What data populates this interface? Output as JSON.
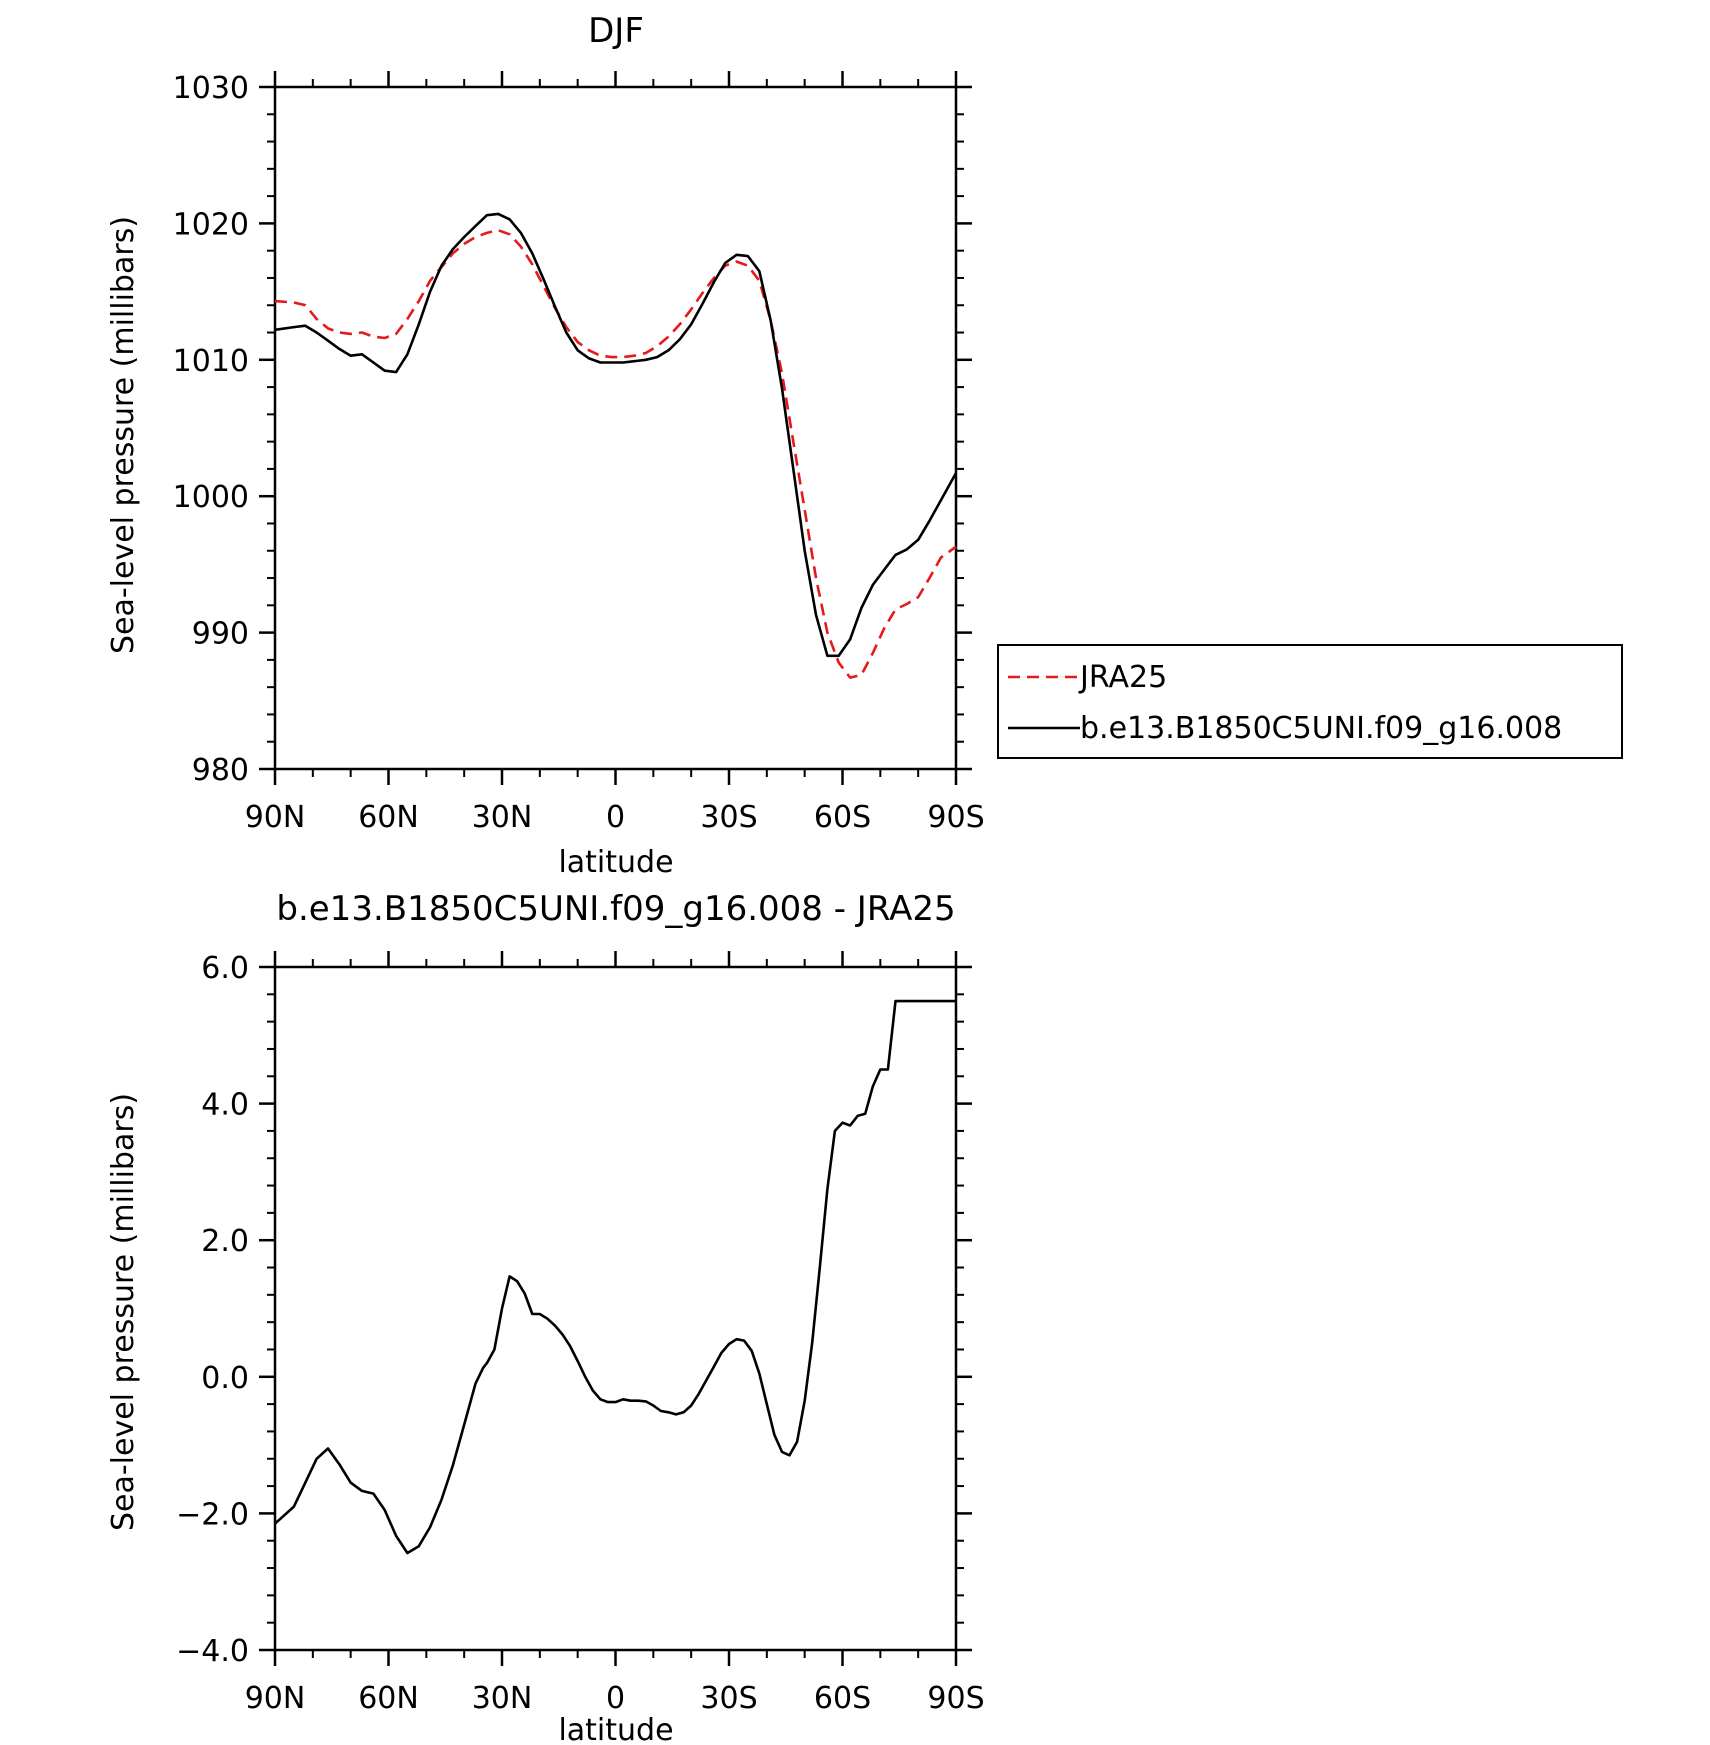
{
  "chart_data": [
    {
      "type": "line",
      "title": "DJF",
      "xlabel": "latitude",
      "ylabel": "Sea-level pressure (millibars)",
      "xlim": [
        90,
        -90
      ],
      "ylim": [
        980,
        1030
      ],
      "x_ticks": [
        {
          "value": 90,
          "label": "90N"
        },
        {
          "value": 60,
          "label": "60N"
        },
        {
          "value": 30,
          "label": "30N"
        },
        {
          "value": 0,
          "label": "0"
        },
        {
          "value": -30,
          "label": "30S"
        },
        {
          "value": -60,
          "label": "60S"
        },
        {
          "value": -90,
          "label": "90S"
        }
      ],
      "y_ticks": [
        {
          "value": 980,
          "label": "980"
        },
        {
          "value": 990,
          "label": "990"
        },
        {
          "value": 1000,
          "label": "1000"
        },
        {
          "value": 1010,
          "label": "1010"
        },
        {
          "value": 1020,
          "label": "1020"
        },
        {
          "value": 1030,
          "label": "1030"
        }
      ],
      "legend": "right",
      "series": [
        {
          "name": "JRA25",
          "color": "#e41a1c",
          "dash": "dashed",
          "x": [
            90,
            85,
            82,
            79,
            76,
            73,
            70,
            67,
            64,
            61,
            58,
            55,
            52,
            49,
            46,
            43,
            40,
            37,
            34,
            31,
            28,
            25,
            22,
            19,
            16,
            13,
            10,
            7,
            4,
            1,
            -2,
            -5,
            -8,
            -11,
            -14,
            -17,
            -20,
            -23,
            -26,
            -29,
            -32,
            -35,
            -38,
            -41,
            -44,
            -47,
            -50,
            -53,
            -56,
            -59,
            -62,
            -65,
            -68,
            -71,
            -74,
            -77,
            -80,
            -83,
            -86,
            -90
          ],
          "values": [
            1014.3,
            1014.2,
            1014.0,
            1013.0,
            1012.3,
            1012.0,
            1011.9,
            1012.0,
            1011.7,
            1011.6,
            1011.9,
            1013.0,
            1014.3,
            1015.8,
            1016.8,
            1017.8,
            1018.5,
            1019.0,
            1019.3,
            1019.5,
            1019.2,
            1018.3,
            1017.0,
            1015.4,
            1013.8,
            1012.4,
            1011.3,
            1010.7,
            1010.3,
            1010.2,
            1010.2,
            1010.3,
            1010.5,
            1011.0,
            1011.7,
            1012.6,
            1013.7,
            1014.9,
            1016.0,
            1016.9,
            1017.2,
            1016.9,
            1015.8,
            1012.9,
            1009.0,
            1004.0,
            999.0,
            994.0,
            990.0,
            987.8,
            986.7,
            986.9,
            988.5,
            990.3,
            991.7,
            992.1,
            992.6,
            994.0,
            995.5,
            996.3
          ]
        },
        {
          "name": "b.e13.B1850C5UNI.f09_g16.008",
          "color": "#000000",
          "dash": "solid",
          "x": [
            90,
            85,
            82,
            79,
            76,
            73,
            70,
            67,
            64,
            61,
            58,
            55,
            52,
            49,
            46,
            43,
            40,
            37,
            34,
            31,
            28,
            25,
            22,
            19,
            16,
            13,
            10,
            7,
            4,
            1,
            -2,
            -5,
            -8,
            -11,
            -14,
            -17,
            -20,
            -23,
            -26,
            -29,
            -32,
            -35,
            -38,
            -41,
            -44,
            -47,
            -50,
            -53,
            -56,
            -59,
            -62,
            -65,
            -68,
            -71,
            -74,
            -77,
            -80,
            -83,
            -86,
            -90
          ],
          "values": [
            1012.2,
            1012.4,
            1012.5,
            1012.0,
            1011.4,
            1010.8,
            1010.3,
            1010.4,
            1009.8,
            1009.2,
            1009.1,
            1010.4,
            1012.6,
            1015.0,
            1016.9,
            1018.1,
            1019.0,
            1019.8,
            1020.6,
            1020.7,
            1020.3,
            1019.3,
            1017.8,
            1015.9,
            1013.9,
            1012.0,
            1010.7,
            1010.1,
            1009.8,
            1009.8,
            1009.8,
            1009.9,
            1010.0,
            1010.2,
            1010.7,
            1011.5,
            1012.6,
            1014.1,
            1015.7,
            1017.1,
            1017.7,
            1017.6,
            1016.5,
            1012.9,
            1007.9,
            1002.0,
            996.0,
            991.3,
            988.3,
            988.3,
            989.5,
            991.8,
            993.5,
            994.6,
            995.7,
            996.1,
            996.8,
            998.2,
            999.7,
            1001.7
          ]
        }
      ]
    },
    {
      "type": "line",
      "title": "b.e13.B1850C5UNI.f09_g16.008 - JRA25",
      "xlabel": "latitude",
      "ylabel": "Sea-level pressure (millibars)",
      "xlim": [
        90,
        -90
      ],
      "ylim": [
        -4.0,
        6.0
      ],
      "x_ticks": [
        {
          "value": 90,
          "label": "90N"
        },
        {
          "value": 60,
          "label": "60N"
        },
        {
          "value": 30,
          "label": "30N"
        },
        {
          "value": 0,
          "label": "0"
        },
        {
          "value": -30,
          "label": "30S"
        },
        {
          "value": -60,
          "label": "60S"
        },
        {
          "value": -90,
          "label": "90S"
        }
      ],
      "y_ticks": [
        {
          "value": -4.0,
          "label": "−4.0"
        },
        {
          "value": -2.0,
          "label": "−2.0"
        },
        {
          "value": 0.0,
          "label": "0.0"
        },
        {
          "value": 2.0,
          "label": "2.0"
        },
        {
          "value": 4.0,
          "label": "4.0"
        },
        {
          "value": 6.0,
          "label": "6.0"
        }
      ],
      "series": [
        {
          "color": "#000000",
          "dash": "solid",
          "x": [
            90,
            88,
            85,
            82,
            79,
            76,
            73,
            70,
            67,
            64,
            61,
            58,
            55,
            52,
            49,
            46,
            43,
            40,
            37,
            35,
            34,
            32,
            30,
            28,
            26,
            24,
            22,
            20,
            18,
            16,
            14,
            12,
            10,
            8,
            6,
            4,
            2,
            0,
            -2,
            -4,
            -6,
            -8,
            -10,
            -12,
            -14,
            -16,
            -18,
            -20,
            -22,
            -24,
            -26,
            -28,
            -30,
            -32,
            -34,
            -36,
            -38,
            -40,
            -42,
            -44,
            -46,
            -48,
            -50,
            -52,
            -54,
            -56,
            -58,
            -60,
            -62,
            -64,
            -66,
            -68,
            -70,
            -72,
            -74,
            -76,
            -78,
            -80,
            -82,
            -84,
            -86,
            -88,
            -90
          ],
          "values": [
            -2.15,
            -2.05,
            -1.9,
            -1.55,
            -1.2,
            -1.05,
            -1.28,
            -1.55,
            -1.67,
            -1.71,
            -1.95,
            -2.33,
            -2.58,
            -2.48,
            -2.2,
            -1.8,
            -1.3,
            -0.7,
            -0.1,
            0.13,
            0.2,
            0.4,
            1.0,
            1.47,
            1.4,
            1.22,
            0.92,
            0.92,
            0.85,
            0.75,
            0.62,
            0.45,
            0.23,
            0.0,
            -0.2,
            -0.33,
            -0.37,
            -0.37,
            -0.33,
            -0.35,
            -0.35,
            -0.36,
            -0.42,
            -0.5,
            -0.52,
            -0.55,
            -0.52,
            -0.42,
            -0.25,
            -0.05,
            0.15,
            0.35,
            0.48,
            0.55,
            0.53,
            0.38,
            0.05,
            -0.4,
            -0.85,
            -1.1,
            -1.15,
            -0.95,
            -0.35,
            0.5,
            1.6,
            2.75,
            3.6,
            3.72,
            3.68,
            3.82,
            3.85,
            4.25,
            4.5,
            4.5,
            5.5,
            5.5,
            5.5,
            5.5,
            5.5,
            5.5,
            5.5,
            5.5,
            5.5
          ]
        }
      ]
    }
  ]
}
